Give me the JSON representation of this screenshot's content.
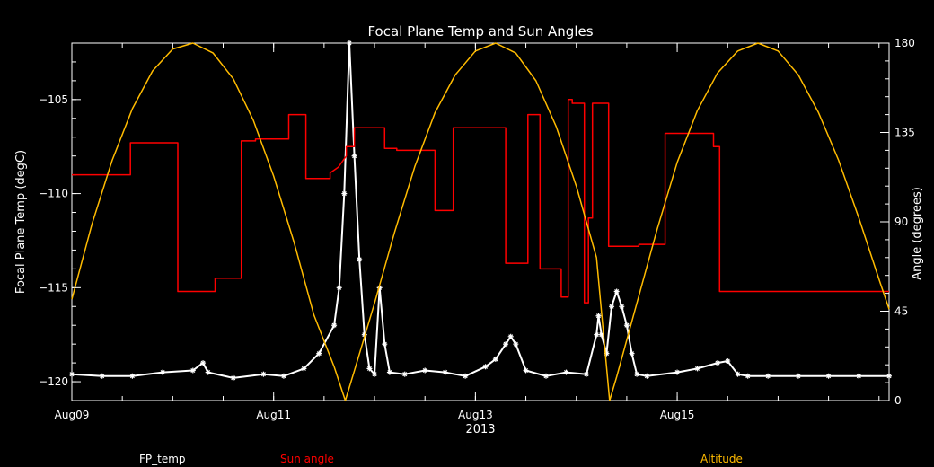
{
  "chart_data": {
    "type": "line",
    "title": "Focal Plane Temp and Sun Angles",
    "xlabel": "2013",
    "ylabel_left": "Focal Plane Temp (degC)",
    "ylabel_right": "Angle (degrees)",
    "xlim": [
      0,
      8.1
    ],
    "xlim_units": "days from Aug09 2013",
    "ylim_left": [
      -121,
      -102
    ],
    "ylim_right": [
      0,
      180
    ],
    "x_ticks": [
      {
        "x": 0,
        "label": "Aug09"
      },
      {
        "x": 2,
        "label": "Aug11"
      },
      {
        "x": 4,
        "label": "Aug13"
      },
      {
        "x": 6,
        "label": "Aug15"
      }
    ],
    "y_ticks_left": [
      -120,
      -115,
      -110,
      -105
    ],
    "y_ticks_right": [
      0,
      45,
      90,
      135,
      180
    ],
    "grid": false,
    "legend_placement": "bottom",
    "series": [
      {
        "name": "FP_temp",
        "axis": "left",
        "color": "#ffffff",
        "marker": "asterisk",
        "x": [
          0,
          0.3,
          0.6,
          0.9,
          1.2,
          1.3,
          1.35,
          1.6,
          1.9,
          2.1,
          2.3,
          2.45,
          2.6,
          2.65,
          2.7,
          2.75,
          2.8,
          2.85,
          2.9,
          2.95,
          3.0,
          3.05,
          3.1,
          3.15,
          3.3,
          3.5,
          3.7,
          3.9,
          4.1,
          4.2,
          4.3,
          4.35,
          4.4,
          4.5,
          4.7,
          4.9,
          5.1,
          5.2,
          5.22,
          5.25,
          5.3,
          5.35,
          5.4,
          5.45,
          5.5,
          5.55,
          5.6,
          5.7,
          6.0,
          6.2,
          6.4,
          6.5,
          6.6,
          6.7,
          6.9,
          7.2,
          7.5,
          7.8,
          8.1
        ],
        "y": [
          -119.6,
          -119.7,
          -119.7,
          -119.5,
          -119.4,
          -119.0,
          -119.5,
          -119.8,
          -119.6,
          -119.7,
          -119.3,
          -118.5,
          -117.0,
          -115.0,
          -110.0,
          -102.0,
          -108.0,
          -113.5,
          -117.5,
          -119.3,
          -119.6,
          -115.0,
          -118.0,
          -119.5,
          -119.6,
          -119.4,
          -119.5,
          -119.7,
          -119.2,
          -118.8,
          -118.0,
          -117.6,
          -118.0,
          -119.4,
          -119.7,
          -119.5,
          -119.6,
          -117.5,
          -116.5,
          -117.5,
          -118.5,
          -116.0,
          -115.2,
          -116.0,
          -117.0,
          -118.5,
          -119.6,
          -119.7,
          -119.5,
          -119.3,
          -119.0,
          -118.9,
          -119.6,
          -119.7,
          -119.7,
          -119.7,
          -119.7,
          -119.7,
          -119.7
        ]
      },
      {
        "name": "Sun angle",
        "axis": "left",
        "color": "#ff0000",
        "step": true,
        "x": [
          0,
          0.58,
          0.58,
          1.05,
          1.05,
          1.42,
          1.42,
          1.68,
          1.68,
          1.68,
          1.82,
          1.82,
          2.15,
          2.15,
          2.32,
          2.32,
          2.38,
          2.38,
          2.56,
          2.56,
          2.64,
          2.68,
          2.72,
          2.72,
          2.8,
          2.8,
          3.1,
          3.1,
          3.22,
          3.22,
          3.6,
          3.6,
          3.78,
          3.78,
          4.3,
          4.3,
          4.52,
          4.52,
          4.64,
          4.64,
          4.85,
          4.85,
          4.92,
          4.92,
          4.96,
          4.96,
          5.08,
          5.08,
          5.12,
          5.12,
          5.16,
          5.16,
          5.32,
          5.32,
          5.34,
          5.34,
          5.38,
          5.38,
          5.44,
          5.44,
          5.5,
          5.5,
          5.62,
          5.62,
          5.88,
          5.88,
          6.36,
          6.36,
          6.42,
          6.42,
          6.58,
          6.58,
          8.1
        ],
        "y": [
          -109,
          -109,
          -107.3,
          -107.3,
          -115.2,
          -115.2,
          -114.5,
          -114.5,
          -114.5,
          -107.2,
          -107.2,
          -107.1,
          -107.1,
          -105.8,
          -105.8,
          -109.2,
          -109.2,
          -109.2,
          -109.2,
          -108.9,
          -108.6,
          -108.3,
          -108.0,
          -107.5,
          -107.5,
          -106.5,
          -106.5,
          -107.6,
          -107.6,
          -107.7,
          -107.7,
          -110.9,
          -110.9,
          -106.5,
          -106.5,
          -113.7,
          -113.7,
          -105.8,
          -105.8,
          -114.0,
          -114.0,
          -115.5,
          -115.5,
          -105.0,
          -105.0,
          -105.2,
          -105.2,
          -115.8,
          -115.8,
          -111.3,
          -111.3,
          -105.2,
          -105.2,
          -112.8,
          -112.8,
          -112.8,
          -112.8,
          -112.8,
          -112.8,
          -112.8,
          -112.8,
          -112.8,
          -112.8,
          -112.7,
          -112.7,
          -106.8,
          -106.8,
          -107.5,
          -107.5,
          -115.2,
          -115.2,
          -115.2,
          -115.2
        ]
      },
      {
        "name": "Altitude",
        "axis": "right",
        "color": "#ffbb00",
        "x": [
          0,
          0.2,
          0.4,
          0.6,
          0.8,
          1.0,
          1.2,
          1.4,
          1.6,
          1.8,
          2.0,
          2.2,
          2.4,
          2.6,
          2.71,
          2.8,
          3.0,
          3.2,
          3.4,
          3.6,
          3.8,
          4.0,
          4.2,
          4.4,
          4.6,
          4.8,
          5.0,
          5.2,
          5.33,
          5.4,
          5.6,
          5.8,
          6.0,
          6.2,
          6.4,
          6.6,
          6.8,
          7.0,
          7.2,
          7.4,
          7.6,
          7.8,
          8.0,
          8.1
        ],
        "y": [
          51,
          89,
          121,
          147,
          166,
          177,
          180,
          175,
          162,
          141,
          113,
          80,
          43,
          17,
          0,
          15,
          49,
          85,
          118,
          145,
          164,
          176,
          180,
          175,
          161,
          138,
          108,
          72,
          0,
          12,
          49,
          86,
          120,
          146,
          165,
          176,
          180,
          176,
          164,
          145,
          121,
          92,
          61,
          46
        ]
      }
    ]
  }
}
